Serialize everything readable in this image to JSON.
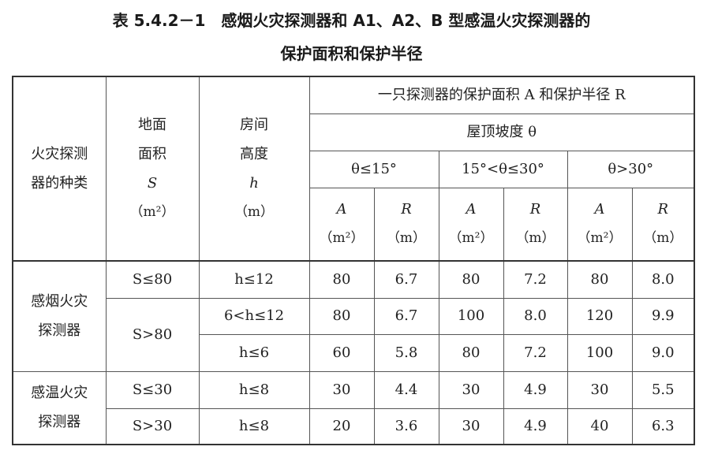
{
  "title": {
    "line1": "表 5.4.2－1　感烟火灾探测器和 A1、A2、B 型感温火灾探测器的",
    "line2": "保护面积和保护半径"
  },
  "header": {
    "detector_type": [
      "火灾探测",
      "器的种类"
    ],
    "floor_area": [
      "地面",
      "面积",
      "S",
      "（m²）"
    ],
    "room_height": [
      "房间",
      "高度",
      "h",
      "（m）"
    ],
    "group": "一只探测器的保护面积 A 和保护半径 R",
    "slope": "屋顶坡度 θ",
    "slope_ranges": [
      "θ≤15°",
      "15°<θ≤30°",
      "θ>30°"
    ],
    "a_label": "A",
    "a_unit": "（m²）",
    "r_label": "R",
    "r_unit": "（m）"
  },
  "rows": {
    "smoke_label": [
      "感烟火灾",
      "探测器"
    ],
    "heat_label": [
      "感温火灾",
      "探测器"
    ],
    "smoke1": {
      "s": "S≤80",
      "h": "h≤12",
      "v": [
        "80",
        "6.7",
        "80",
        "7.2",
        "80",
        "8.0"
      ]
    },
    "smoke_s2": "S>80",
    "smoke2": {
      "h": "6<h≤12",
      "v": [
        "80",
        "6.7",
        "100",
        "8.0",
        "120",
        "9.9"
      ]
    },
    "smoke3": {
      "h": "h≤6",
      "v": [
        "60",
        "5.8",
        "80",
        "7.2",
        "100",
        "9.0"
      ]
    },
    "heat1": {
      "s": "S≤30",
      "h": "h≤8",
      "v": [
        "30",
        "4.4",
        "30",
        "4.9",
        "30",
        "5.5"
      ]
    },
    "heat2": {
      "s": "S>30",
      "h": "h≤8",
      "v": [
        "20",
        "3.6",
        "30",
        "4.9",
        "40",
        "6.3"
      ]
    }
  }
}
